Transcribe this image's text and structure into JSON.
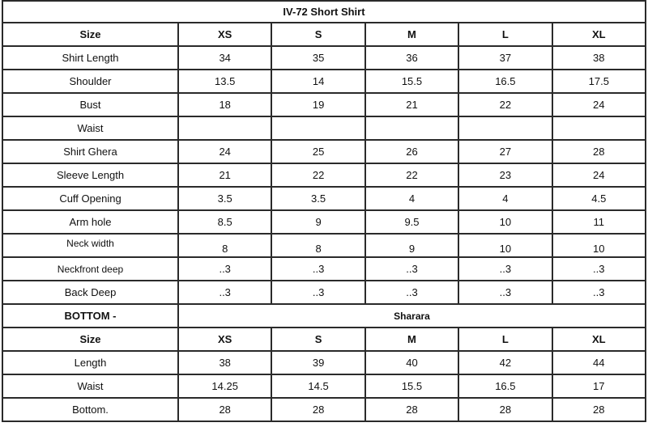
{
  "title": "IV-72  Short Shirt",
  "sizes": [
    "XS",
    "S",
    "M",
    "L",
    "XL"
  ],
  "size_label": "Size",
  "shirt_rows": [
    {
      "label": "Shirt Length",
      "values": [
        "34",
        "35",
        "36",
        "37",
        "38"
      ]
    },
    {
      "label": "Shoulder",
      "values": [
        "13.5",
        "14",
        "15.5",
        "16.5",
        "17.5"
      ]
    },
    {
      "label": "Bust",
      "values": [
        "18",
        "19",
        "21",
        "22",
        "24"
      ]
    },
    {
      "label": "Waist",
      "values": [
        "",
        "",
        "",
        "",
        ""
      ]
    },
    {
      "label": "Shirt Ghera",
      "values": [
        "24",
        "25",
        "26",
        "27",
        "28"
      ]
    },
    {
      "label": "Sleeve Length",
      "values": [
        "21",
        "22",
        "22",
        "23",
        "24"
      ]
    },
    {
      "label": "Cuff Opening",
      "values": [
        "3.5",
        "3.5",
        "4",
        "4",
        "4.5"
      ]
    },
    {
      "label": "Arm hole",
      "values": [
        "8.5",
        "9",
        "9.5",
        "10",
        "11"
      ]
    },
    {
      "label": "Neck width",
      "values": [
        "8",
        "8",
        "9",
        "10",
        "10"
      ]
    },
    {
      "label": "Neckfront deep",
      "values": [
        "..3",
        "..3",
        "..3",
        "..3",
        "..3"
      ]
    },
    {
      "label": "Back Deep",
      "values": [
        "..3",
        "..3",
        "..3",
        "..3",
        "..3"
      ]
    }
  ],
  "bottom": {
    "label": "BOTTOM -",
    "type": "Sharara",
    "rows": [
      {
        "label": "Length",
        "values": [
          "38",
          "39",
          "40",
          "42",
          "44"
        ]
      },
      {
        "label": "Waist",
        "values": [
          "14.25",
          "14.5",
          "15.5",
          "16.5",
          "17"
        ]
      },
      {
        "label": "Bottom.",
        "values": [
          "28",
          "28",
          "28",
          "28",
          "28"
        ]
      }
    ]
  }
}
